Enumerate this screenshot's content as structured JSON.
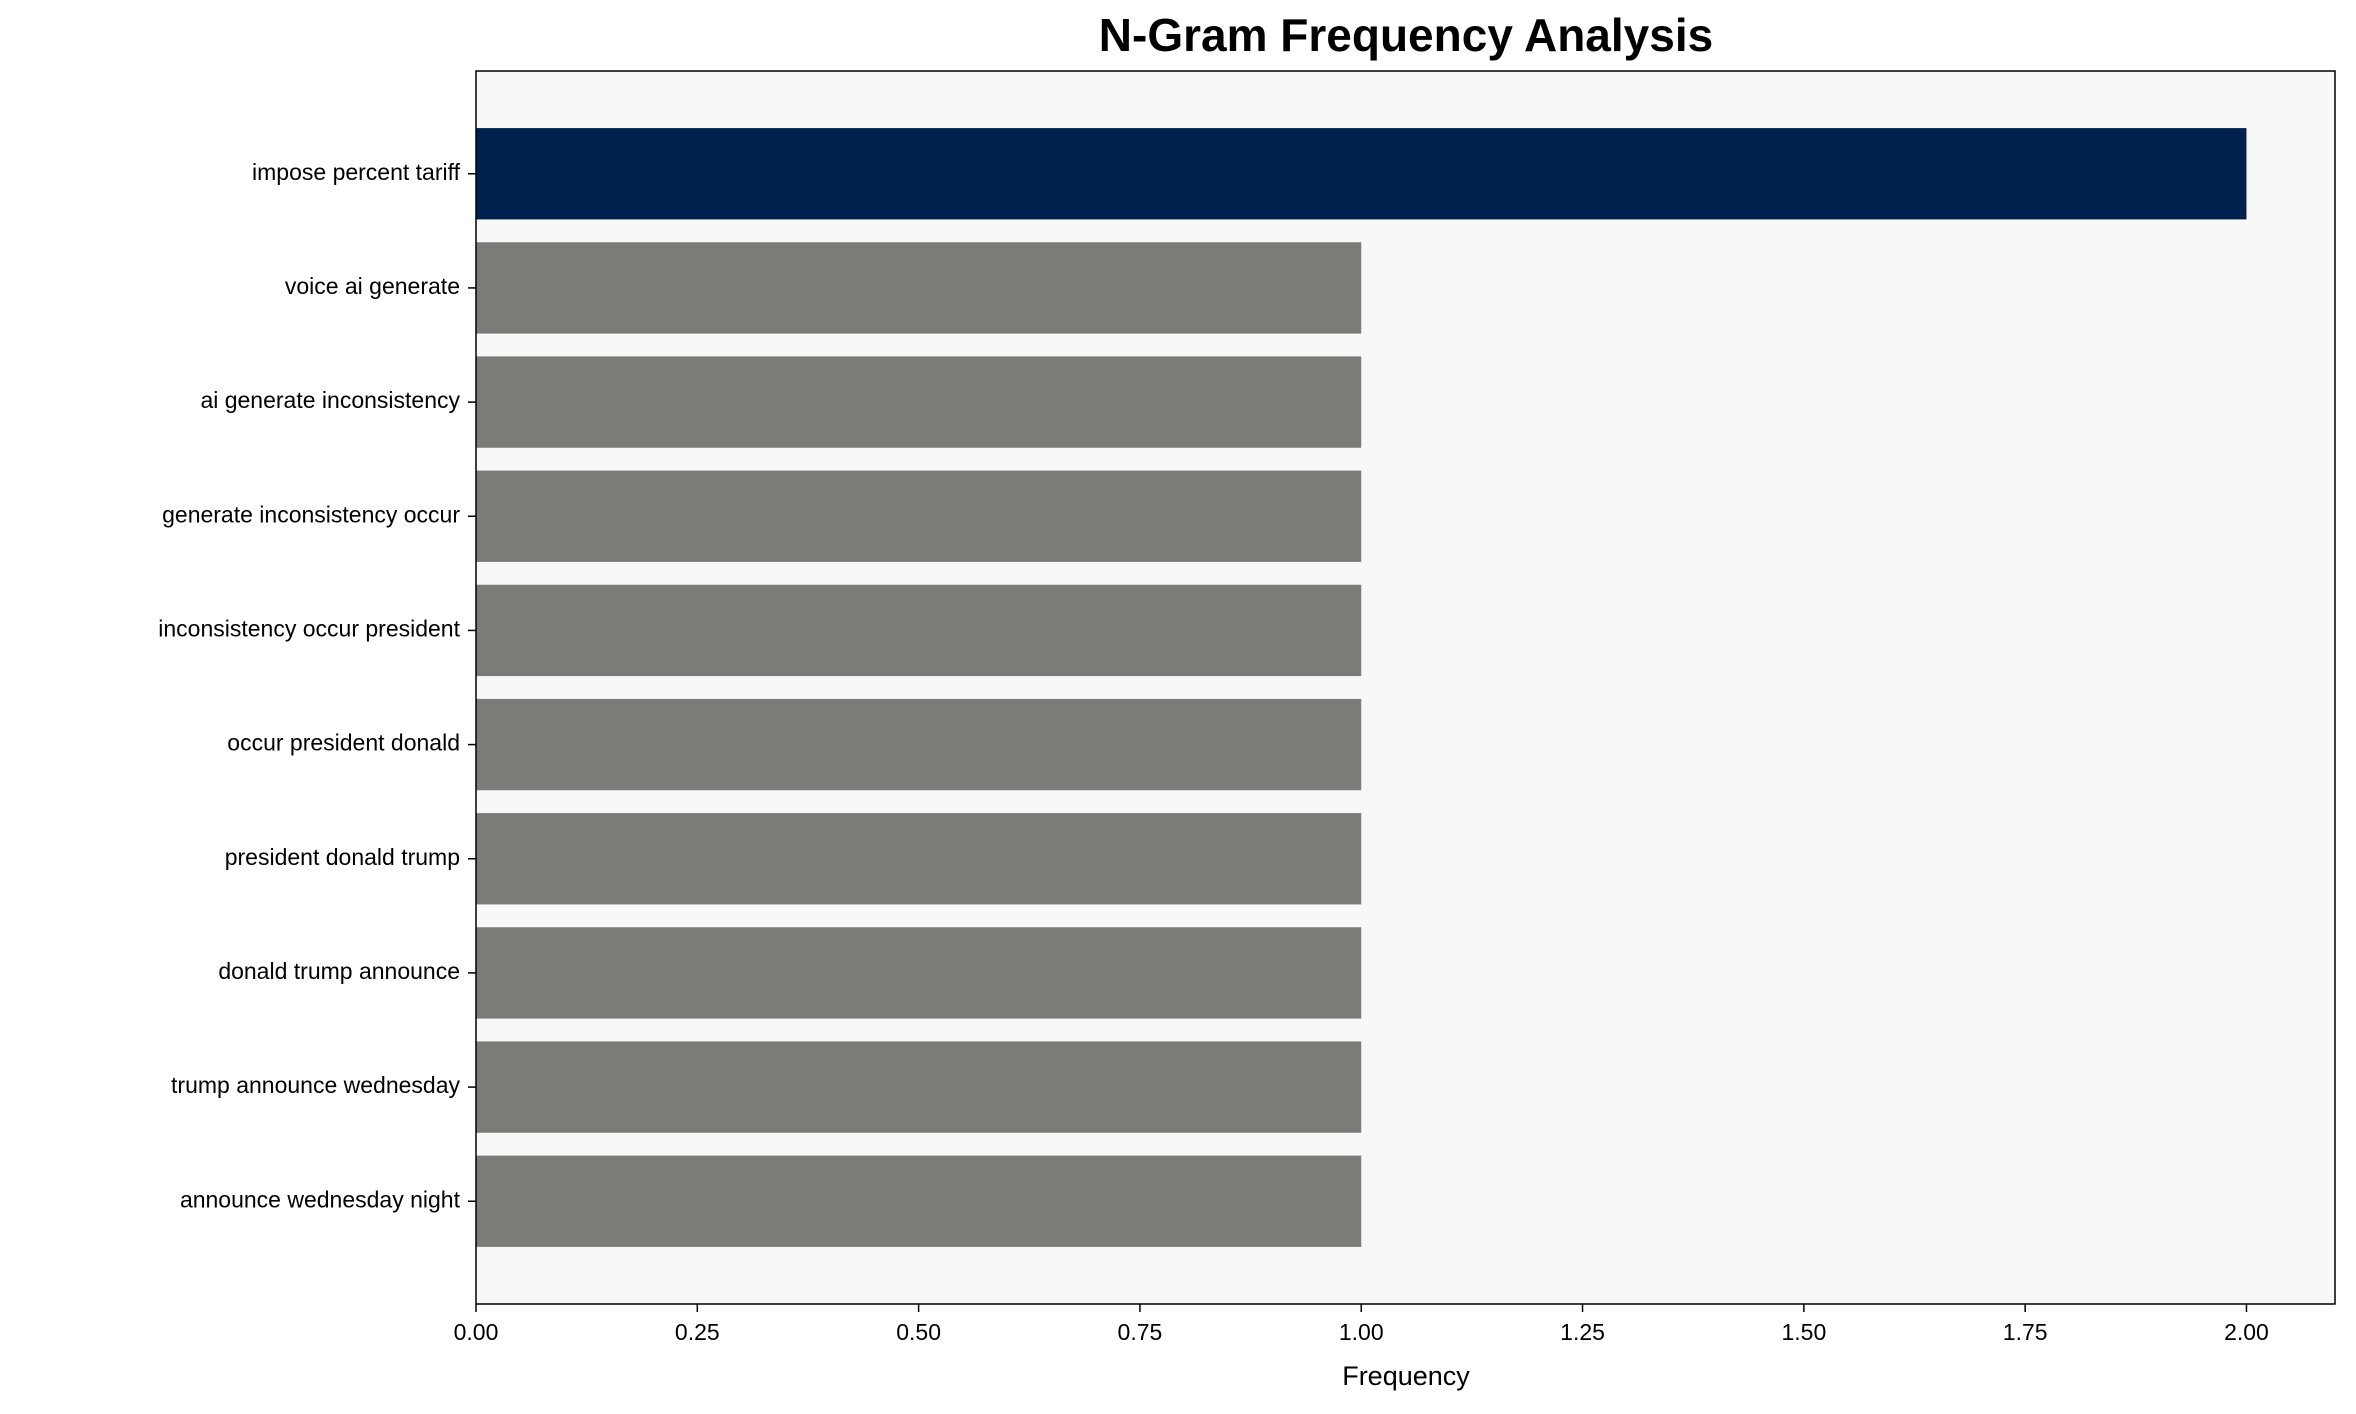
{
  "chart_data": {
    "type": "barh",
    "title": "N-Gram Frequency Analysis",
    "xlabel": "Frequency",
    "categories": [
      "impose percent tariff",
      "voice ai generate",
      "ai generate inconsistency",
      "generate inconsistency occur",
      "inconsistency occur president",
      "occur president donald",
      "president donald trump",
      "donald trump announce",
      "trump announce wednesday",
      "announce wednesday night"
    ],
    "values": [
      2,
      1,
      1,
      1,
      1,
      1,
      1,
      1,
      1,
      1
    ],
    "colors": [
      "#00214d",
      "#7b7b77",
      "#7b7b77",
      "#7b7b77",
      "#7b7b77",
      "#7b7b77",
      "#7b7b77",
      "#7b7b77",
      "#7b7b77",
      "#7b7b77"
    ],
    "xlim": [
      0,
      2.1
    ],
    "xticks": [
      {
        "value": 0,
        "label": "0.00"
      },
      {
        "value": 0.25,
        "label": "0.25"
      },
      {
        "value": 0.5,
        "label": "0.50"
      },
      {
        "value": 0.75,
        "label": "0.75"
      },
      {
        "value": 1,
        "label": "1.00"
      },
      {
        "value": 1.25,
        "label": "1.25"
      },
      {
        "value": 1.5,
        "label": "1.50"
      },
      {
        "value": 1.75,
        "label": "1.75"
      },
      {
        "value": 2,
        "label": "2.00"
      }
    ],
    "grid": false
  }
}
